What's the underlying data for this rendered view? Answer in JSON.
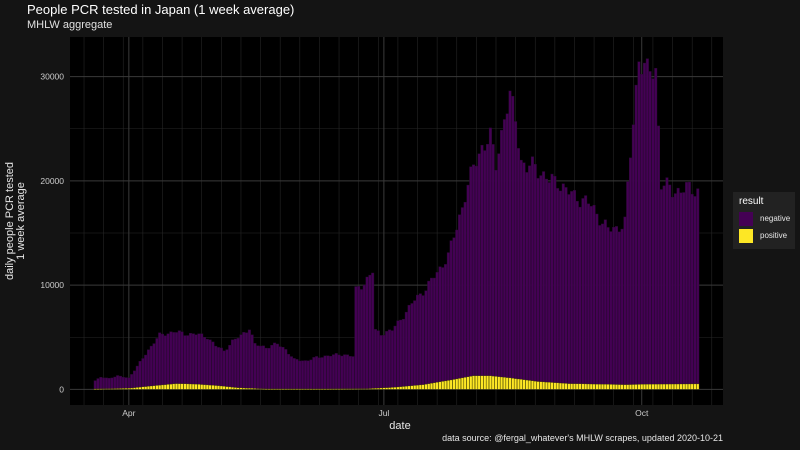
{
  "title": "People PCR tested in Japan (1 week average)",
  "subtitle": "MHLW aggregate",
  "caption": "data source: @fergal_whatever's MHLW scrapes, updated 2020-10-21",
  "chart_data": {
    "type": "bar",
    "stacked": true,
    "xlabel": "date",
    "ylabel_lines": [
      "daily people PCR tested",
      "1 week average"
    ],
    "x_start": "2020-03-20",
    "x_end": "2020-10-21",
    "xlim": [
      "2020-03-11",
      "2020-10-30"
    ],
    "ylim": [
      -1500,
      33800
    ],
    "y_ticks": [
      0,
      10000,
      20000,
      30000
    ],
    "x_ticks": [
      {
        "label": "Apr",
        "date": "2020-04-01"
      },
      {
        "label": "Jul",
        "date": "2020-07-01"
      },
      {
        "label": "Oct",
        "date": "2020-10-01"
      }
    ],
    "grid": true,
    "legend": {
      "title": "result",
      "position": "right"
    },
    "series": [
      {
        "name": "negative",
        "color": "#440154",
        "anchors": [
          [
            "2020-03-20",
            800
          ],
          [
            "2020-03-22",
            1100
          ],
          [
            "2020-03-25",
            1000
          ],
          [
            "2020-03-28",
            1200
          ],
          [
            "2020-04-01",
            1000
          ],
          [
            "2020-04-04",
            2000
          ],
          [
            "2020-04-08",
            3500
          ],
          [
            "2020-04-12",
            4800
          ],
          [
            "2020-04-17",
            5000
          ],
          [
            "2020-04-21",
            4800
          ],
          [
            "2020-04-25",
            4800
          ],
          [
            "2020-04-29",
            4600
          ],
          [
            "2020-05-02",
            3800
          ],
          [
            "2020-05-05",
            3400
          ],
          [
            "2020-05-08",
            4400
          ],
          [
            "2020-05-11",
            5000
          ],
          [
            "2020-05-14",
            5800
          ],
          [
            "2020-05-16",
            4200
          ],
          [
            "2020-05-20",
            4000
          ],
          [
            "2020-05-24",
            4300
          ],
          [
            "2020-05-27",
            3800
          ],
          [
            "2020-05-30",
            2800
          ],
          [
            "2020-06-03",
            2700
          ],
          [
            "2020-06-07",
            3000
          ],
          [
            "2020-06-11",
            3200
          ],
          [
            "2020-06-17",
            3300
          ],
          [
            "2020-06-20",
            3100
          ],
          [
            "2020-06-21",
            9400
          ],
          [
            "2020-06-24",
            10200
          ],
          [
            "2020-06-27",
            11200
          ],
          [
            "2020-06-28",
            5500
          ],
          [
            "2020-06-30",
            5200
          ],
          [
            "2020-07-04",
            5500
          ],
          [
            "2020-07-08",
            6800
          ],
          [
            "2020-07-12",
            8200
          ],
          [
            "2020-07-16",
            9200
          ],
          [
            "2020-07-20",
            10500
          ],
          [
            "2020-07-24",
            12000
          ],
          [
            "2020-07-27",
            14500
          ],
          [
            "2020-07-30",
            17500
          ],
          [
            "2020-08-02",
            20000
          ],
          [
            "2020-08-05",
            22000
          ],
          [
            "2020-08-08",
            22800
          ],
          [
            "2020-08-10",
            20300
          ],
          [
            "2020-08-13",
            25000
          ],
          [
            "2020-08-15",
            26800
          ],
          [
            "2020-08-17",
            25000
          ],
          [
            "2020-08-19",
            21000
          ],
          [
            "2020-08-21",
            20300
          ],
          [
            "2020-08-24",
            20700
          ],
          [
            "2020-08-27",
            19800
          ],
          [
            "2020-08-29",
            19300
          ],
          [
            "2020-09-01",
            19400
          ],
          [
            "2020-09-04",
            18500
          ],
          [
            "2020-09-07",
            18000
          ],
          [
            "2020-09-10",
            17700
          ],
          [
            "2020-09-13",
            17100
          ],
          [
            "2020-09-16",
            16000
          ],
          [
            "2020-09-19",
            14800
          ],
          [
            "2020-09-22",
            15000
          ],
          [
            "2020-09-25",
            15600
          ],
          [
            "2020-09-27",
            22000
          ],
          [
            "2020-09-30",
            31500
          ],
          [
            "2020-10-03",
            29800
          ],
          [
            "2020-10-06",
            30200
          ],
          [
            "2020-10-08",
            19300
          ],
          [
            "2020-10-12",
            18500
          ],
          [
            "2020-10-16",
            18700
          ],
          [
            "2020-10-21",
            18600
          ]
        ]
      },
      {
        "name": "positive",
        "color": "#fde725",
        "anchors": [
          [
            "2020-03-20",
            40
          ],
          [
            "2020-04-01",
            100
          ],
          [
            "2020-04-10",
            350
          ],
          [
            "2020-04-18",
            550
          ],
          [
            "2020-04-25",
            500
          ],
          [
            "2020-05-03",
            350
          ],
          [
            "2020-05-10",
            150
          ],
          [
            "2020-05-20",
            40
          ],
          [
            "2020-06-10",
            40
          ],
          [
            "2020-06-25",
            60
          ],
          [
            "2020-07-05",
            200
          ],
          [
            "2020-07-15",
            450
          ],
          [
            "2020-07-25",
            900
          ],
          [
            "2020-08-02",
            1300
          ],
          [
            "2020-08-08",
            1300
          ],
          [
            "2020-08-15",
            1100
          ],
          [
            "2020-08-25",
            750
          ],
          [
            "2020-09-05",
            550
          ],
          [
            "2020-09-25",
            450
          ],
          [
            "2020-10-05",
            500
          ],
          [
            "2020-10-21",
            520
          ]
        ]
      }
    ]
  }
}
